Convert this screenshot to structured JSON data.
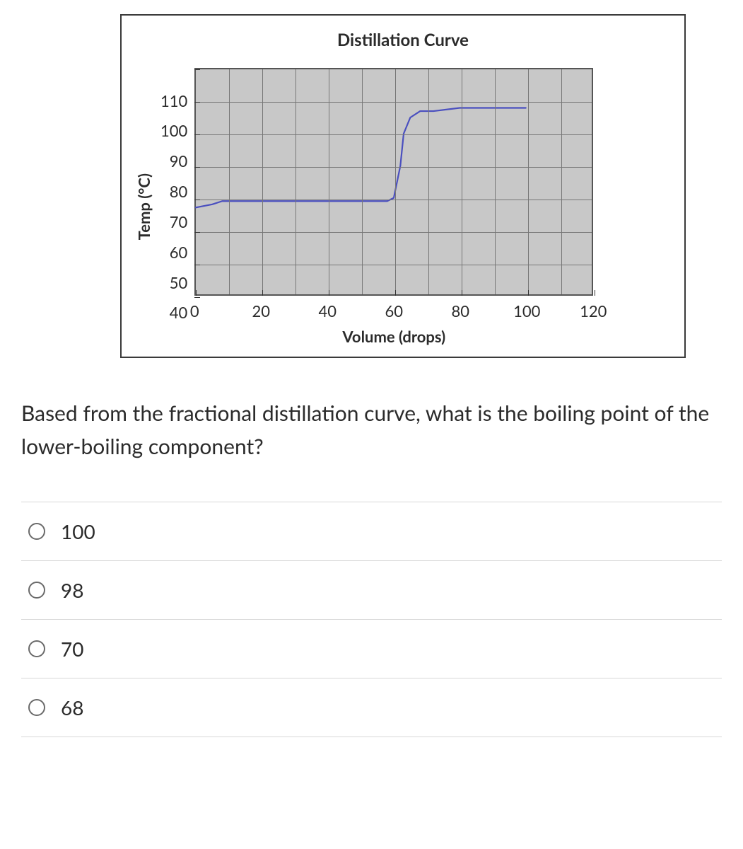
{
  "chart": {
    "type": "line",
    "title": "Distillation Curve",
    "ylabel": "Temp (°C)",
    "xlabel": "Volume (drops)",
    "xlim": [
      0,
      120
    ],
    "ylim": [
      40,
      110
    ],
    "xtick_step": 20,
    "ytick_step": 10,
    "xtick_labels": [
      "0",
      "20",
      "40",
      "60",
      "80",
      "100",
      "120"
    ],
    "ytick_labels": [
      "110",
      "100",
      "90",
      "80",
      "70",
      "60",
      "50",
      "40"
    ],
    "minor_step_x": 10,
    "minor_step_y": 10,
    "plot_background": "#c8c8c8",
    "grid_color": "#777777",
    "axis_color": "#333333",
    "frame_border_color": "#3a3a3a",
    "line_color": "#4a4fbf",
    "line_width": 2.2,
    "title_fontsize": 24,
    "label_fontsize": 22,
    "tick_fontsize": 22,
    "series": {
      "x": [
        0,
        5,
        8,
        20,
        40,
        55,
        58,
        60,
        62,
        63,
        65,
        68,
        72,
        80,
        95,
        100
      ],
      "y": [
        67,
        68,
        69,
        69,
        69,
        69,
        69,
        70,
        80,
        90,
        95,
        97,
        97,
        98,
        98,
        98
      ]
    }
  },
  "question": {
    "text": "Based from the fractional distillation curve, what is the boiling point of the lower-boiling component?"
  },
  "options": [
    {
      "label": "100",
      "selected": false
    },
    {
      "label": "98",
      "selected": false
    },
    {
      "label": "70",
      "selected": false
    },
    {
      "label": "68",
      "selected": false
    }
  ],
  "colors": {
    "text": "#2b2b2b",
    "divider": "#d9d9d9",
    "radio_border": "#6a6a6a",
    "page_background": "#ffffff"
  }
}
